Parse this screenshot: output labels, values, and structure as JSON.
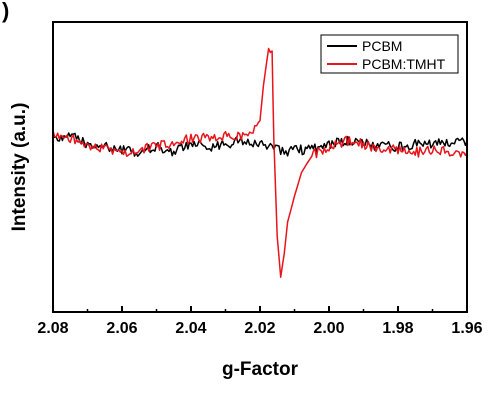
{
  "chart_data": {
    "type": "line",
    "panel_label": ")",
    "xlabel": "g-Factor",
    "ylabel": "Intensity (a.u.)",
    "x_ticks": [
      "2.08",
      "2.06",
      "2.04",
      "2.02",
      "2.00",
      "1.98",
      "1.96"
    ],
    "xlim": [
      2.08,
      1.96
    ],
    "x_reversed": true,
    "ylim": [
      0,
      1
    ],
    "y_ticks_shown": false,
    "grid": false,
    "legend_position": "top-right",
    "series": [
      {
        "name": "PCBM",
        "color": "#000000",
        "points": [
          [
            2.08,
            0.59
          ],
          [
            2.075,
            0.61
          ],
          [
            2.07,
            0.58
          ],
          [
            2.065,
            0.57
          ],
          [
            2.06,
            0.56
          ],
          [
            2.055,
            0.55
          ],
          [
            2.05,
            0.57
          ],
          [
            2.045,
            0.55
          ],
          [
            2.04,
            0.58
          ],
          [
            2.035,
            0.57
          ],
          [
            2.03,
            0.58
          ],
          [
            2.025,
            0.59
          ],
          [
            2.022,
            0.58
          ],
          [
            2.02,
            0.58
          ],
          [
            2.018,
            0.57
          ],
          [
            2.016,
            0.57
          ],
          [
            2.014,
            0.56
          ],
          [
            2.012,
            0.55
          ],
          [
            2.01,
            0.56
          ],
          [
            2.005,
            0.56
          ],
          [
            2.0,
            0.58
          ],
          [
            1.995,
            0.59
          ],
          [
            1.99,
            0.58
          ],
          [
            1.985,
            0.57
          ],
          [
            1.98,
            0.57
          ],
          [
            1.975,
            0.58
          ],
          [
            1.97,
            0.58
          ],
          [
            1.965,
            0.58
          ],
          [
            1.96,
            0.59
          ]
        ]
      },
      {
        "name": "PCBM:TMHT",
        "color": "#e8141b",
        "points": [
          [
            2.08,
            0.61
          ],
          [
            2.075,
            0.6
          ],
          [
            2.07,
            0.58
          ],
          [
            2.065,
            0.56
          ],
          [
            2.06,
            0.55
          ],
          [
            2.055,
            0.56
          ],
          [
            2.05,
            0.57
          ],
          [
            2.045,
            0.58
          ],
          [
            2.04,
            0.6
          ],
          [
            2.035,
            0.6
          ],
          [
            2.03,
            0.61
          ],
          [
            2.025,
            0.61
          ],
          [
            2.022,
            0.63
          ],
          [
            2.02,
            0.66
          ],
          [
            2.019,
            0.78
          ],
          [
            2.0175,
            0.91
          ],
          [
            2.0165,
            0.9
          ],
          [
            2.016,
            0.6
          ],
          [
            2.015,
            0.26
          ],
          [
            2.014,
            0.12
          ],
          [
            2.013,
            0.2
          ],
          [
            2.012,
            0.31
          ],
          [
            2.01,
            0.4
          ],
          [
            2.008,
            0.48
          ],
          [
            2.005,
            0.54
          ],
          [
            2.0,
            0.57
          ],
          [
            1.995,
            0.59
          ],
          [
            1.99,
            0.58
          ],
          [
            1.985,
            0.56
          ],
          [
            1.98,
            0.56
          ],
          [
            1.975,
            0.55
          ],
          [
            1.97,
            0.56
          ],
          [
            1.965,
            0.55
          ],
          [
            1.96,
            0.55
          ]
        ]
      }
    ]
  }
}
